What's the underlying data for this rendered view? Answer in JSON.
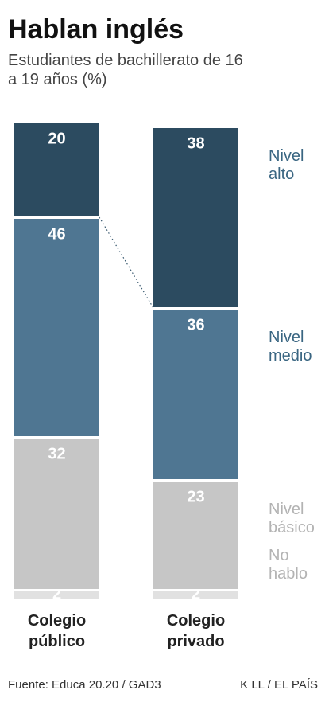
{
  "chart_data": {
    "type": "stacked-bar",
    "title": "Hablan inglés",
    "subtitle": "Estudiantes de bachillerato de 16 a 19 años (%)",
    "categories": [
      "Colegio público",
      "Colegio privado"
    ],
    "series": [
      {
        "name": "Nivel alto",
        "color": "#2c4b60",
        "label_color": "#3a6682",
        "values": [
          20,
          38
        ]
      },
      {
        "name": "Nivel medio",
        "color": "#4f7692",
        "label_color": "#3a6682",
        "values": [
          46,
          36
        ]
      },
      {
        "name": "Nivel básico",
        "color": "#c6c6c6",
        "label_color": "#b3b3b3",
        "values": [
          32,
          23
        ]
      },
      {
        "name": "No hablo",
        "color": "#e1e1e1",
        "label_color": "#b3b3b3",
        "values": [
          2,
          2
        ]
      }
    ],
    "ylim": [
      0,
      100
    ],
    "source": "Fuente: Educa 20.20 / GAD3",
    "credit": "K LL / EL PAÍS"
  }
}
